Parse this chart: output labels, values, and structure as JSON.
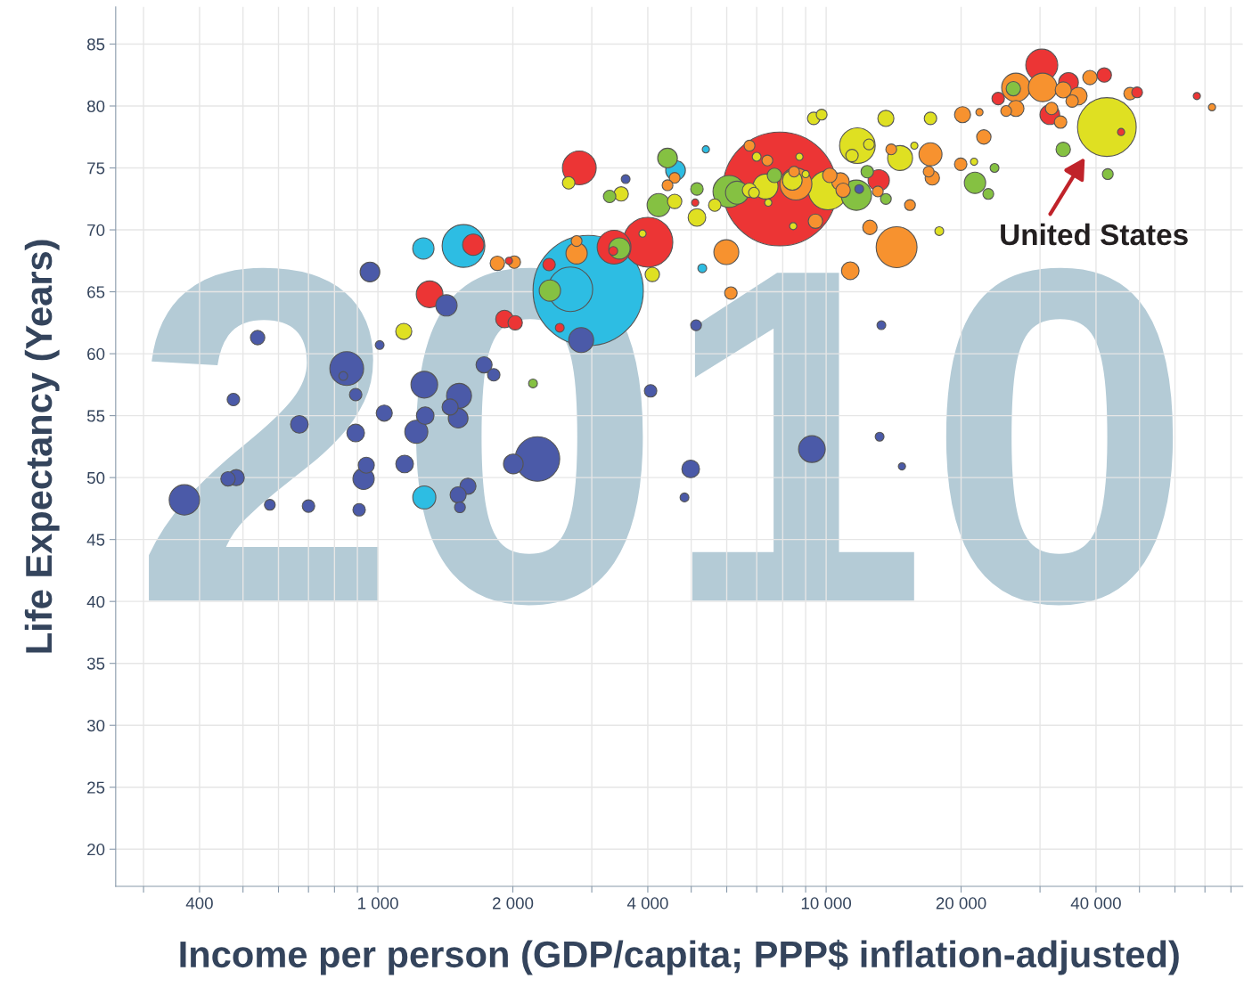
{
  "chart_data": {
    "type": "bubble",
    "xlabel": "Income per person (GDP/capita; PPP$ inflation-adjusted)",
    "ylabel": "Life Expectancy (Years)",
    "annotations": [
      "2010",
      "United States"
    ],
    "log": "x",
    "grid": true,
    "xlim": [
      260,
      85000
    ],
    "ylim": [
      17,
      88
    ],
    "xticks": [
      {
        "value": 300,
        "label": null
      },
      400,
      {
        "value": 500,
        "label": null
      },
      {
        "value": 600,
        "label": null
      },
      {
        "value": 700,
        "label": null
      },
      {
        "value": 800,
        "label": null
      },
      {
        "value": 900,
        "label": null
      },
      {
        "value": 1000,
        "label": "1 000"
      },
      {
        "value": 2000,
        "label": "2 000"
      },
      {
        "value": 3000,
        "label": null
      },
      {
        "value": 4000,
        "label": "4 000"
      },
      {
        "value": 5000,
        "label": null
      },
      {
        "value": 6000,
        "label": null
      },
      {
        "value": 7000,
        "label": null
      },
      {
        "value": 8000,
        "label": null
      },
      {
        "value": 9000,
        "label": null
      },
      {
        "value": 10000,
        "label": "10 000"
      },
      {
        "value": 20000,
        "label": "20 000"
      },
      {
        "value": 30000,
        "label": null
      },
      {
        "value": 40000,
        "label": "40 000"
      },
      {
        "value": 50000,
        "label": null
      },
      {
        "value": 60000,
        "label": null
      },
      {
        "value": 70000,
        "label": null
      },
      {
        "value": 80000,
        "label": null
      }
    ],
    "yticks": [
      20,
      25,
      30,
      35,
      40,
      45,
      50,
      55,
      60,
      65,
      70,
      75,
      80,
      85
    ],
    "series": [
      {
        "color": "#4b5aa8",
        "x": [
          370,
          463,
          483,
          574,
          700,
          476,
          539,
          668,
          852,
          837,
          892,
          960,
          1009,
          1033,
          892,
          942,
          929,
          908,
          1147,
          1269,
          1275,
          1218,
          1422,
          1517,
          1449,
          1510,
          1725,
          1813,
          2269,
          2005,
          1588,
          1510,
          1524,
          3570,
          2841,
          5126,
          4058,
          4986,
          9294,
          13280,
          13160,
          14760,
          11850,
          4830
        ],
        "values": [
          48.2,
          49.9,
          50.0,
          47.8,
          47.7,
          56.3,
          61.3,
          54.3,
          58.8,
          58.2,
          56.7,
          66.6,
          60.7,
          55.2,
          53.6,
          51.0,
          49.9,
          47.4,
          51.1,
          57.5,
          55.0,
          53.7,
          63.9,
          56.6,
          55.7,
          54.8,
          59.1,
          58.3,
          51.5,
          51.1,
          49.3,
          48.6,
          47.6,
          74.1,
          61.1,
          62.3,
          57.0,
          50.7,
          52.3,
          62.3,
          53.3,
          50.9,
          73.3,
          48.4
        ],
        "sizes": [
          0.071,
          0.016,
          0.02,
          0.009,
          0.012,
          0.012,
          0.016,
          0.024,
          0.088,
          0.006,
          0.012,
          0.03,
          0.006,
          0.02,
          0.024,
          0.02,
          0.035,
          0.012,
          0.024,
          0.055,
          0.024,
          0.041,
          0.035,
          0.048,
          0.02,
          0.03,
          0.02,
          0.012,
          0.153,
          0.03,
          0.02,
          0.02,
          0.009,
          0.006,
          0.048,
          0.009,
          0.012,
          0.024,
          0.055,
          0.006,
          0.006,
          0.004,
          0.006,
          0.006
        ]
      },
      {
        "color": "#2dbde3",
        "x": [
          1263,
          1552,
          1269,
          2945,
          2688,
          4613,
          5390,
          5292
        ],
        "values": [
          68.5,
          68.7,
          48.4,
          65.1,
          65.2,
          74.8,
          76.5,
          66.9
        ],
        "sizes": [
          0.035,
          0.141,
          0.041,
          0.938,
          0.153,
          0.03,
          0.004,
          0.006
        ]
      },
      {
        "color": "#ec3535",
        "x": [
          1632,
          1304,
          1916,
          2024,
          1960,
          2409,
          2545,
          2814,
          5103,
          4003,
          3364,
          3350,
          7882,
          13100,
          30270,
          24200,
          34730,
          31550,
          41730,
          49400,
          67140,
          45500
        ],
        "values": [
          68.8,
          64.8,
          62.8,
          62.5,
          67.5,
          67.2,
          62.1,
          75.0,
          72.2,
          69.0,
          68.6,
          68.3,
          73.3,
          74.0,
          83.3,
          80.6,
          81.9,
          79.3,
          82.5,
          81.1,
          80.8,
          77.9
        ],
        "sizes": [
          0.035,
          0.055,
          0.024,
          0.016,
          0.004,
          0.012,
          0.006,
          0.088,
          0.004,
          0.191,
          0.088,
          0.006,
          1.0,
          0.035,
          0.079,
          0.012,
          0.03,
          0.03,
          0.016,
          0.009,
          0.004,
          0.004
        ]
      },
      {
        "color": "#85c142",
        "x": [
          2218,
          2419,
          3288,
          4427,
          4229,
          5149,
          3458,
          6071,
          6327,
          7667,
          11680,
          12350,
          13590,
          26160,
          33800,
          42490,
          21480,
          23750,
          23000
        ],
        "values": [
          57.6,
          65.1,
          72.7,
          75.8,
          72.0,
          73.3,
          68.5,
          73.1,
          73.0,
          74.4,
          72.8,
          74.7,
          72.5,
          81.4,
          76.5,
          74.5,
          73.8,
          75.0,
          72.9
        ],
        "sizes": [
          0.006,
          0.035,
          0.012,
          0.03,
          0.041,
          0.012,
          0.035,
          0.079,
          0.041,
          0.016,
          0.071,
          0.012,
          0.009,
          0.016,
          0.016,
          0.009,
          0.035,
          0.006,
          0.009
        ]
      },
      {
        "color": "#dfe022",
        "x": [
          1142,
          2664,
          3489,
          4592,
          5149,
          5643,
          3894,
          4094,
          6998,
          8718,
          6745,
          6902,
          7325,
          8404,
          9000,
          7427,
          8442,
          10090,
          11740,
          11420,
          12460,
          14620,
          15730,
          9380,
          9772,
          13590,
          17090,
          21380,
          17880,
          42290
        ],
        "values": [
          61.8,
          73.8,
          72.9,
          72.3,
          71.0,
          72.0,
          69.7,
          66.4,
          75.9,
          75.9,
          73.2,
          73.0,
          73.5,
          74.0,
          74.5,
          72.2,
          70.3,
          73.2,
          76.8,
          76.0,
          76.9,
          75.8,
          76.8,
          79.0,
          79.3,
          79.0,
          79.0,
          75.5,
          69.9,
          78.3
        ],
        "sizes": [
          0.02,
          0.012,
          0.016,
          0.016,
          0.024,
          0.012,
          0.004,
          0.016,
          0.006,
          0.004,
          0.016,
          0.009,
          0.048,
          0.03,
          0.004,
          0.004,
          0.004,
          0.118,
          0.098,
          0.012,
          0.009,
          0.048,
          0.004,
          0.012,
          0.009,
          0.02,
          0.012,
          0.004,
          0.006,
          0.266
        ]
      },
      {
        "color": "#f7922f",
        "x": [
          1847,
          2015,
          2775,
          2775,
          4592,
          4427,
          5988,
          6130,
          6745,
          7393,
          8560,
          8480,
          9465,
          10190,
          10760,
          10910,
          13040,
          13970,
          17090,
          16930,
          17250,
          15380,
          12520,
          14360,
          11320,
          26510,
          25210,
          26510,
          30410,
          33800,
          35380,
          36520,
          31840,
          33340,
          38770,
          47640,
          72580,
          20150,
          21980,
          22480,
          19960
        ],
        "values": [
          67.3,
          67.4,
          68.1,
          69.1,
          74.2,
          73.6,
          68.2,
          64.9,
          76.8,
          75.6,
          73.7,
          74.7,
          70.7,
          74.4,
          73.9,
          73.2,
          73.1,
          76.5,
          76.1,
          74.7,
          74.2,
          72.0,
          70.2,
          68.6,
          66.7,
          81.5,
          79.6,
          79.8,
          81.5,
          81.3,
          80.4,
          80.8,
          79.8,
          78.7,
          82.3,
          81.0,
          79.9,
          79.3,
          79.5,
          77.5,
          75.3
        ],
        "sizes": [
          0.016,
          0.012,
          0.035,
          0.009,
          0.009,
          0.009,
          0.048,
          0.012,
          0.009,
          0.009,
          0.079,
          0.009,
          0.016,
          0.016,
          0.024,
          0.016,
          0.009,
          0.009,
          0.041,
          0.009,
          0.016,
          0.009,
          0.016,
          0.129,
          0.024,
          0.063,
          0.009,
          0.02,
          0.063,
          0.02,
          0.012,
          0.024,
          0.012,
          0.012,
          0.016,
          0.012,
          0.004,
          0.02,
          0.004,
          0.016,
          0.012
        ]
      }
    ]
  }
}
